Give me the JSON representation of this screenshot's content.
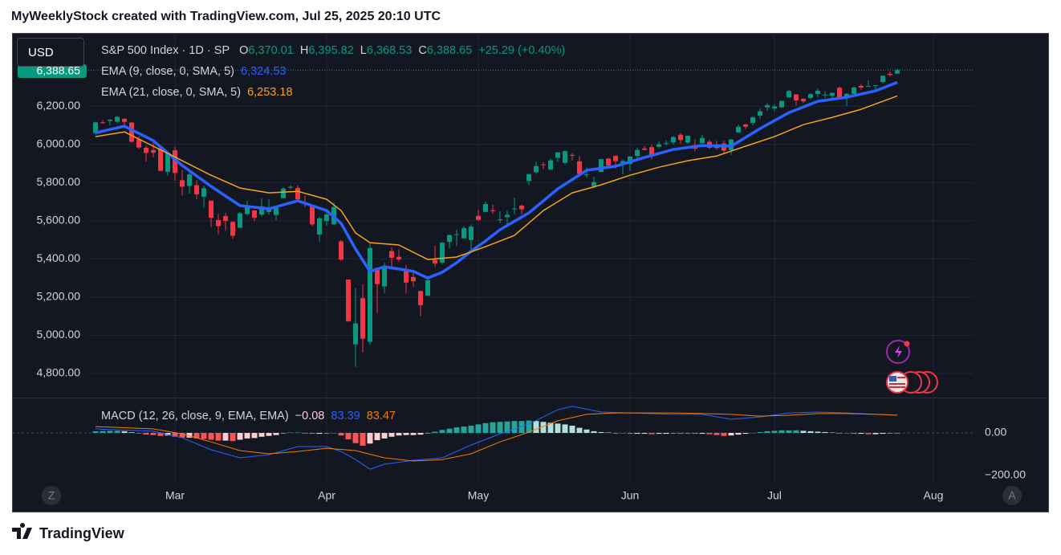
{
  "header": {
    "title": "MyWeeklyStock created with TradingView.com, Jul 25, 2025 20:10 UTC",
    "currency": "USD",
    "footer": "TradingView",
    "left_button": "Z",
    "right_button": "A"
  },
  "chart_data": [
    {
      "type": "candlestick",
      "title": "S&P 500 Index · 1D · SP",
      "ohlc_labels": [
        {
          "key": "O",
          "value": "6,370.01"
        },
        {
          "key": "H",
          "value": "6,395.82"
        },
        {
          "key": "L",
          "value": "6,368.53"
        },
        {
          "key": "C",
          "value": "6,388.65"
        }
      ],
      "change": "+25.29 (+0.40%)",
      "last_price_label": "6,388.65",
      "up_color": "#089981",
      "down_color": "#f23645",
      "xlim": [
        -11.56,
        121.56
      ],
      "ylim": [
        4674,
        6583
      ],
      "yticks": [
        {
          "value": 4800,
          "label": "4,800.00"
        },
        {
          "value": 5000,
          "label": "5,000.00"
        },
        {
          "value": 5200,
          "label": "5,200.00"
        },
        {
          "value": 5400,
          "label": "5,400.00"
        },
        {
          "value": 5600,
          "label": "5,600.00"
        },
        {
          "value": 5800,
          "label": "5,800.00"
        },
        {
          "value": 6000,
          "label": "6,000.00"
        },
        {
          "value": 6200,
          "label": "6,200.00"
        }
      ],
      "xticks": [
        {
          "value": 11,
          "label": "Mar"
        },
        {
          "value": 32,
          "label": "Apr"
        },
        {
          "value": 53,
          "label": "May"
        },
        {
          "value": 74,
          "label": "Jun"
        },
        {
          "value": 94,
          "label": "Jul"
        },
        {
          "value": 116,
          "label": "Aug"
        }
      ],
      "grid": true,
      "ohlc": [
        [
          6060,
          6116,
          6051,
          6115
        ],
        [
          6115,
          6127,
          6107,
          6114
        ],
        [
          6122,
          6129,
          6100,
          6129
        ],
        [
          6118,
          6147,
          6111,
          6144
        ],
        [
          6134,
          6136,
          6089,
          6117
        ],
        [
          6114,
          6114,
          6009,
          6013
        ],
        [
          6027,
          6043,
          5977,
          5983
        ],
        [
          5982,
          5992,
          5909,
          5955
        ],
        [
          5970,
          6009,
          5932,
          5956
        ],
        [
          5981,
          5994,
          5858,
          5861
        ],
        [
          5856,
          5959,
          5837,
          5955
        ],
        [
          5969,
          5986,
          5810,
          5850
        ],
        [
          5812,
          5866,
          5732,
          5778
        ],
        [
          5782,
          5861,
          5742,
          5842
        ],
        [
          5786,
          5812,
          5711,
          5738
        ],
        [
          5726,
          5783,
          5666,
          5770
        ],
        [
          5705,
          5705,
          5565,
          5615
        ],
        [
          5603,
          5636,
          5529,
          5572
        ],
        [
          5624,
          5642,
          5547,
          5599
        ],
        [
          5594,
          5598,
          5505,
          5521
        ],
        [
          5563,
          5645,
          5563,
          5639
        ],
        [
          5635,
          5704,
          5628,
          5675
        ],
        [
          5654,
          5654,
          5597,
          5615
        ],
        [
          5632,
          5716,
          5622,
          5675
        ],
        [
          5646,
          5711,
          5632,
          5663
        ],
        [
          5630,
          5670,
          5603,
          5668
        ],
        [
          5718,
          5776,
          5718,
          5768
        ],
        [
          5775,
          5786,
          5765,
          5777
        ],
        [
          5771,
          5784,
          5695,
          5712
        ],
        [
          5696,
          5732,
          5670,
          5693
        ],
        [
          5679,
          5680,
          5572,
          5581
        ],
        [
          5527,
          5620,
          5489,
          5612
        ],
        [
          5598,
          5651,
          5573,
          5633
        ],
        [
          5581,
          5695,
          5578,
          5671
        ],
        [
          5492,
          5500,
          5390,
          5396
        ],
        [
          5292,
          5292,
          5070,
          5074
        ],
        [
          4953,
          5246,
          4835,
          5062
        ],
        [
          5194,
          5267,
          4910,
          4982
        ],
        [
          4966,
          5481,
          4950,
          5457
        ],
        [
          5353,
          5353,
          5116,
          5268
        ],
        [
          5256,
          5381,
          5221,
          5363
        ],
        [
          5441,
          5460,
          5359,
          5406
        ],
        [
          5411,
          5450,
          5386,
          5397
        ],
        [
          5335,
          5368,
          5221,
          5276
        ],
        [
          5305,
          5328,
          5255,
          5283
        ],
        [
          5232,
          5233,
          5101,
          5158
        ],
        [
          5207,
          5310,
          5207,
          5288
        ],
        [
          5395,
          5469,
          5357,
          5376
        ],
        [
          5381,
          5489,
          5371,
          5485
        ],
        [
          5489,
          5528,
          5455,
          5525
        ],
        [
          5529,
          5553,
          5468,
          5529
        ],
        [
          5508,
          5571,
          5506,
          5561
        ],
        [
          5499,
          5581,
          5434,
          5569
        ],
        [
          5625,
          5659,
          5597,
          5604
        ],
        [
          5646,
          5700,
          5645,
          5687
        ],
        [
          5655,
          5684,
          5637,
          5650
        ],
        [
          5605,
          5649,
          5586,
          5607
        ],
        [
          5619,
          5654,
          5578,
          5631
        ],
        [
          5663,
          5721,
          5635,
          5664
        ],
        [
          5679,
          5684,
          5633,
          5660
        ],
        [
          5808,
          5845,
          5786,
          5844
        ],
        [
          5854,
          5907,
          5845,
          5886
        ],
        [
          5895,
          5906,
          5868,
          5892
        ],
        [
          5867,
          5925,
          5865,
          5916
        ],
        [
          5929,
          5959,
          5907,
          5958
        ],
        [
          5903,
          5968,
          5896,
          5964
        ],
        [
          5944,
          5954,
          5915,
          5940
        ],
        [
          5911,
          5939,
          5830,
          5845
        ],
        [
          5841,
          5878,
          5825,
          5842
        ],
        [
          5781,
          5830,
          5768,
          5802
        ],
        [
          5855,
          5924,
          5855,
          5922
        ],
        [
          5925,
          5929,
          5886,
          5889
        ],
        [
          5939,
          5943,
          5874,
          5912
        ],
        [
          5903,
          5922,
          5843,
          5912
        ],
        [
          5897,
          5937,
          5861,
          5936
        ],
        [
          5939,
          5982,
          5924,
          5970
        ],
        [
          5978,
          5991,
          5967,
          5971
        ],
        [
          5985,
          5999,
          5921,
          5939
        ],
        [
          5987,
          6016,
          5978,
          6000
        ],
        [
          6005,
          6021,
          5994,
          6006
        ],
        [
          6010,
          6044,
          5998,
          6038
        ],
        [
          6050,
          6059,
          6003,
          6022
        ],
        [
          6009,
          6045,
          6003,
          6045
        ],
        [
          5996,
          6026,
          5963,
          5977
        ],
        [
          6005,
          6050,
          6005,
          6033
        ],
        [
          6013,
          6024,
          5976,
          5982
        ],
        [
          5987,
          6018,
          5971,
          5981
        ],
        [
          6004,
          6019,
          5953,
          5967
        ],
        [
          5970,
          6028,
          5943,
          6025
        ],
        [
          6062,
          6102,
          6060,
          6092
        ],
        [
          6104,
          6108,
          6080,
          6092
        ],
        [
          6112,
          6146,
          6099,
          6141
        ],
        [
          6150,
          6187,
          6132,
          6173
        ],
        [
          6193,
          6215,
          6175,
          6205
        ],
        [
          6187,
          6211,
          6172,
          6198
        ],
        [
          6193,
          6228,
          6192,
          6227
        ],
        [
          6246,
          6284,
          6245,
          6279
        ],
        [
          6261,
          6263,
          6202,
          6230
        ],
        [
          6238,
          6242,
          6217,
          6225
        ],
        [
          6243,
          6269,
          6236,
          6263
        ],
        [
          6264,
          6291,
          6247,
          6280
        ],
        [
          6256,
          6278,
          6243,
          6260
        ],
        [
          6255,
          6272,
          6237,
          6269
        ],
        [
          6296,
          6302,
          6244,
          6244
        ],
        [
          6250,
          6267,
          6201,
          6264
        ],
        [
          6264,
          6303,
          6263,
          6297
        ],
        [
          6306,
          6315,
          6285,
          6297
        ],
        [
          6304,
          6336,
          6303,
          6305
        ],
        [
          6307,
          6310,
          6282,
          6309
        ],
        [
          6326,
          6360,
          6318,
          6359
        ],
        [
          6369,
          6382,
          6355,
          6363
        ],
        [
          6370.01,
          6395.82,
          6368.53,
          6388.65
        ]
      ],
      "series": [
        {
          "name": "EMA (9, close, 0, SMA, 5)",
          "value_label": "6,324.53",
          "color": "#2962ff",
          "width": 3.5,
          "x": [
            0,
            4,
            8,
            12,
            16,
            20,
            24,
            28,
            32,
            34,
            36,
            38,
            40,
            42,
            44,
            46,
            48,
            50,
            52,
            54,
            56,
            60,
            64,
            68,
            72,
            76,
            80,
            84,
            88,
            92,
            96,
            100,
            104,
            108,
            111
          ],
          "values": [
            6060,
            6095,
            6019,
            5889,
            5780,
            5679,
            5662,
            5704,
            5653,
            5586,
            5452,
            5334,
            5359,
            5347,
            5335,
            5300,
            5330,
            5380,
            5440,
            5494,
            5553,
            5641,
            5767,
            5864,
            5885,
            5931,
            5973,
            5994,
            5990,
            6082,
            6166,
            6225,
            6246,
            6280,
            6324.53
          ]
        },
        {
          "name": "EMA (21, close, 0, SMA, 5)",
          "value_label": "6,253.18",
          "color": "#f7a21b",
          "width": 1.5,
          "x": [
            0,
            4,
            8,
            12,
            16,
            20,
            24,
            28,
            32,
            34,
            36,
            38,
            42,
            46,
            50,
            54,
            58,
            62,
            66,
            70,
            74,
            78,
            82,
            86,
            90,
            94,
            98,
            102,
            106,
            111
          ],
          "values": [
            6040,
            6065,
            5990,
            5914,
            5838,
            5771,
            5746,
            5754,
            5712,
            5653,
            5536,
            5485,
            5473,
            5397,
            5410,
            5464,
            5523,
            5653,
            5746,
            5788,
            5838,
            5880,
            5914,
            5939,
            5990,
            6040,
            6103,
            6141,
            6183,
            6253.18
          ]
        }
      ]
    },
    {
      "type": "macd",
      "title": "MACD (12, 26, close, 9, EMA, EMA)",
      "xlim": [
        -11.56,
        121.56
      ],
      "ylim": [
        -230,
        166
      ],
      "yticks": [
        {
          "value": 0,
          "label": "0.00"
        },
        {
          "value": -200,
          "label": "−200.00"
        }
      ],
      "histogram": {
        "value_label": "−0.08",
        "colors": [
          "#26a69a",
          "#b2dfdb",
          "#ff5252",
          "#ffcdd2"
        ],
        "values": [
          8,
          9,
          10,
          10,
          8,
          3,
          -3,
          -8,
          -10,
          -14,
          -12,
          -18,
          -22,
          -22,
          -26,
          -28,
          -32,
          -36,
          -36,
          -38,
          -32,
          -26,
          -24,
          -18,
          -14,
          -10,
          -2,
          2,
          2,
          0,
          -4,
          -4,
          -2,
          0,
          -12,
          -30,
          -48,
          -60,
          -50,
          -34,
          -26,
          -18,
          -12,
          -10,
          -10,
          -8,
          -2,
          6,
          14,
          20,
          26,
          30,
          34,
          40,
          46,
          50,
          52,
          54,
          56,
          56,
          58,
          56,
          52,
          48,
          44,
          40,
          34,
          24,
          16,
          8,
          4,
          2,
          0,
          -2,
          -4,
          -4,
          -4,
          -6,
          -4,
          -4,
          -2,
          -2,
          -2,
          -4,
          -4,
          -6,
          -10,
          -14,
          -12,
          -8,
          -4,
          0,
          4,
          8,
          10,
          12,
          12,
          12,
          10,
          8,
          6,
          4,
          2,
          0,
          -2,
          -4,
          -4,
          -6,
          -6,
          -4,
          -2,
          -0.08
        ]
      },
      "series": [
        {
          "value_label": "83.39",
          "color": "#2962ff",
          "width": 1,
          "x": [
            0,
            8,
            12,
            16,
            20,
            24,
            28,
            32,
            34,
            36,
            38,
            40,
            44,
            48,
            52,
            56,
            60,
            64,
            66,
            70,
            74,
            80,
            84,
            88,
            92,
            96,
            100,
            104,
            108,
            111
          ],
          "values": [
            19,
            8,
            -23,
            -79,
            -117,
            -102,
            -64,
            -64,
            -87,
            -125,
            -170,
            -147,
            -128,
            -117,
            -57,
            -4,
            42,
            109,
            125,
            98,
            94,
            87,
            87,
            64,
            75,
            94,
            98,
            94,
            87,
            83.39
          ]
        },
        {
          "value_label": "83.47",
          "color": "#f57c00",
          "width": 1,
          "x": [
            0,
            8,
            12,
            16,
            20,
            24,
            28,
            32,
            36,
            40,
            44,
            48,
            52,
            56,
            60,
            64,
            68,
            72,
            76,
            80,
            84,
            88,
            92,
            96,
            100,
            104,
            108,
            111
          ],
          "values": [
            30,
            19,
            -4,
            -42,
            -83,
            -98,
            -87,
            -72,
            -83,
            -117,
            -132,
            -125,
            -98,
            -42,
            4,
            57,
            87,
            94,
            94,
            94,
            91,
            87,
            79,
            83,
            91,
            91,
            87,
            83.47
          ]
        }
      ]
    }
  ]
}
